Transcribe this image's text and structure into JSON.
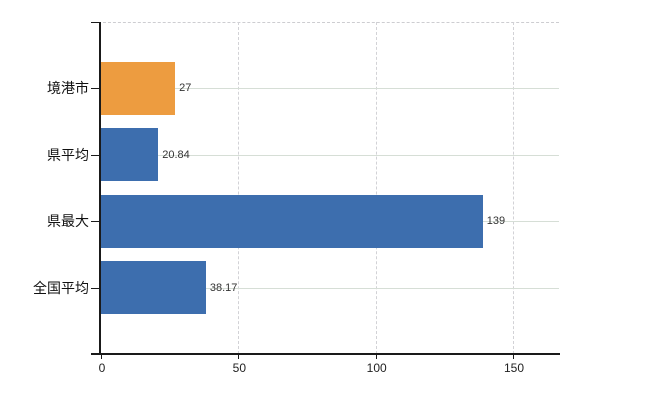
{
  "chart_data": {
    "type": "bar",
    "orientation": "horizontal",
    "title": "",
    "categories": [
      "境港市",
      "県平均",
      "県最大",
      "全国平均"
    ],
    "values": [
      27,
      20.84,
      139,
      38.17
    ],
    "value_labels": [
      "27",
      "20.84",
      "139",
      "38.17"
    ],
    "bar_colors": [
      "#ED9C40",
      "#3D6EAE",
      "#3D6EAE",
      "#3D6EAE"
    ],
    "x_ticks": [
      0,
      50,
      100,
      150
    ],
    "x_tick_labels": [
      "0",
      "50",
      "100",
      "150"
    ],
    "xlim": [
      0,
      166.8
    ],
    "xlabel": "",
    "ylabel": "",
    "legend": "none",
    "grid": {
      "vertical_style": "dashed",
      "horizontal_style": "solid",
      "top_border_style": "dashed"
    }
  },
  "colors": {
    "background": "#ffffff",
    "bar_highlight_orange": "#ED9C40",
    "bar_blue": "#3D6EAE",
    "axis": "#1a1a1a",
    "grid_vertical": "#d2d2d6",
    "grid_horizontal": "#d6ded6",
    "category_text": "#111111",
    "value_text": "#333333",
    "tick_text": "#222222"
  }
}
